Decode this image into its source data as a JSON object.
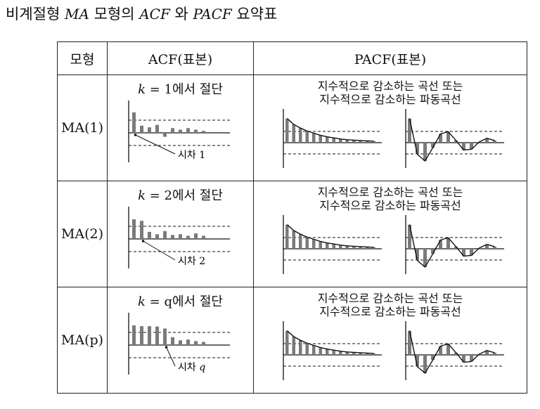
{
  "title": {
    "prefix": "비계절형 ",
    "model_italic": "MA",
    "mid1": " 모형의 ",
    "acf_italic": "ACF",
    "mid2": " 와 ",
    "pacf_italic": "PACF",
    "suffix": " 요약표"
  },
  "table": {
    "headers": {
      "model": "모형",
      "acf": "ACF(표본)",
      "pacf": "PACF(표본)"
    },
    "rows": [
      {
        "model": "MA(1)",
        "cond_k": "k",
        "cond_eq": " = 1",
        "cond_text": "에서 절단",
        "lag_prefix": "시차 ",
        "lag": "1",
        "pacf_line1": "지수적으로 감소하는 곡선 또는",
        "pacf_line2": "지수적으로 감소하는 파동곡선",
        "acf_bars": [
          0.52,
          0.18,
          0.14,
          0.2,
          -0.1,
          0.12,
          0.08,
          0.12,
          0.08,
          0.05
        ]
      },
      {
        "model": "MA(2)",
        "cond_k": "k",
        "cond_eq": " = 2",
        "cond_text": "에서 절단",
        "lag_prefix": "시차 ",
        "lag": "2",
        "pacf_line1": "지수적으로 감소하는 곡선 또는",
        "pacf_line2": "지수적으로 감소하는 파동곡선",
        "acf_bars": [
          0.5,
          0.46,
          0.18,
          0.12,
          0.2,
          0.1,
          0.12,
          0.08,
          0.14,
          0.08
        ]
      },
      {
        "model": "MA(p)",
        "cond_k": "k",
        "cond_eq": " = q",
        "cond_text": "에서 절단",
        "lag_prefix": "시차 ",
        "lag": "q",
        "pacf_line1": "지수적으로 감소하는 곡선 또는",
        "pacf_line2": "지수적으로 감소하는 파동곡선",
        "acf_bars": [
          0.5,
          0.48,
          0.48,
          0.47,
          0.42,
          0.2,
          0.12,
          0.14,
          0.1,
          0.08
        ]
      }
    ]
  },
  "pacf_decay": [
    0.66,
    0.5,
    0.4,
    0.32,
    0.26,
    0.2,
    0.16,
    0.13,
    0.1,
    0.08,
    0.07,
    0.06,
    0.05,
    0.04
  ],
  "pacf_wave": [
    0.66,
    -0.32,
    -0.5,
    -0.14,
    0.24,
    0.3,
    0.06,
    -0.2,
    -0.18,
    0.02,
    0.12,
    0.06
  ],
  "colors": {
    "bar": "#7a7a7a",
    "line": "#111111"
  }
}
